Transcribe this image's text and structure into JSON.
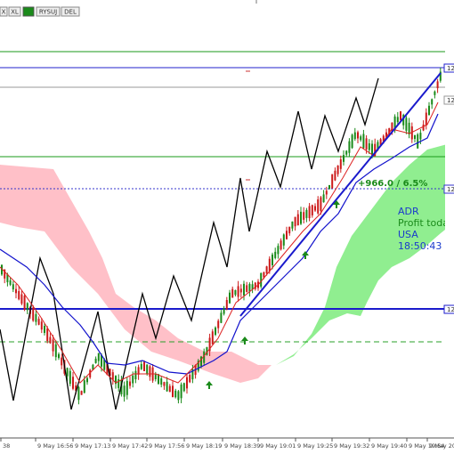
{
  "toolbar": {
    "buttons": [
      "X",
      "XL",
      "RYSUJ",
      "DEL"
    ]
  },
  "annotations": {
    "profit": "+966.0 / 6.5%",
    "info": [
      "ADR",
      "Profit today",
      "USA",
      "18:50:43"
    ]
  },
  "price_labels": [
    "12",
    "12",
    "12",
    "12"
  ],
  "time_axis": {
    "labels": [
      "38",
      "9 May 16:56",
      "9 May 17:13",
      "9 May 17:42",
      "9 May 17:56",
      "9 May 18:19",
      "9 May 18:39",
      "9 May 19:01",
      "9 May 19:25",
      "9 May 19:32",
      "9 May 19:40",
      "9 May 19:54",
      "9 May 20:"
    ]
  }
}
